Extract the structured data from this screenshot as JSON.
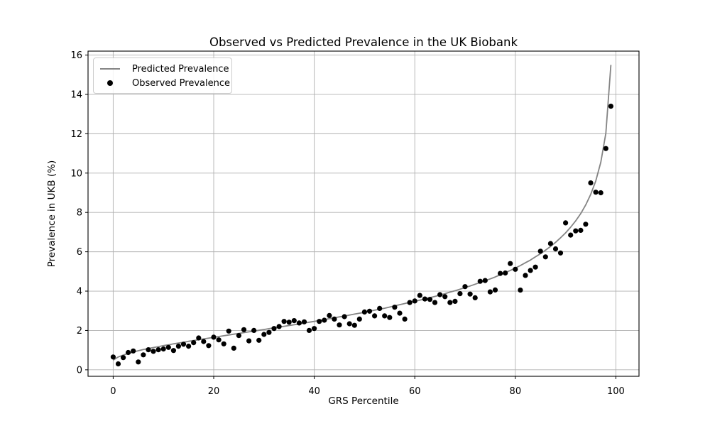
{
  "chart_data": {
    "type": "line+scatter",
    "title": "Observed vs Predicted Prevalence in the UK Biobank",
    "xlabel": "GRS Percentile",
    "ylabel": "Prevalence in UKB (%)",
    "xlim": [
      -5,
      104.6
    ],
    "ylim": [
      -0.33,
      16.2
    ],
    "xticks": [
      0,
      20,
      40,
      60,
      80,
      100
    ],
    "yticks": [
      0,
      2,
      4,
      6,
      8,
      10,
      12,
      14,
      16
    ],
    "grid": true,
    "grid_color": "#b0b0b0",
    "spine_color": "#000000",
    "background_color": "#ffffff",
    "legend_position": "upper left",
    "x": [
      0,
      1,
      2,
      3,
      4,
      5,
      6,
      7,
      8,
      9,
      10,
      11,
      12,
      13,
      14,
      15,
      16,
      17,
      18,
      19,
      20,
      21,
      22,
      23,
      24,
      25,
      26,
      27,
      28,
      29,
      30,
      31,
      32,
      33,
      34,
      35,
      36,
      37,
      38,
      39,
      40,
      41,
      42,
      43,
      44,
      45,
      46,
      47,
      48,
      49,
      50,
      51,
      52,
      53,
      54,
      55,
      56,
      57,
      58,
      59,
      60,
      61,
      62,
      63,
      64,
      65,
      66,
      67,
      68,
      69,
      70,
      71,
      72,
      73,
      74,
      75,
      76,
      77,
      78,
      79,
      80,
      81,
      82,
      83,
      84,
      85,
      86,
      87,
      88,
      89,
      90,
      91,
      92,
      93,
      94,
      95,
      96,
      97,
      98,
      99
    ],
    "series": [
      {
        "name": "Predicted Prevalence",
        "type": "line",
        "color": "#848484",
        "line_width": 1.8,
        "values": [
          0.49,
          0.65,
          0.75,
          0.83,
          0.9,
          0.97,
          1.03,
          1.08,
          1.13,
          1.18,
          1.23,
          1.27,
          1.32,
          1.36,
          1.4,
          1.45,
          1.49,
          1.53,
          1.57,
          1.61,
          1.65,
          1.69,
          1.73,
          1.77,
          1.81,
          1.85,
          1.89,
          1.93,
          1.97,
          2.01,
          2.05,
          2.09,
          2.13,
          2.17,
          2.21,
          2.25,
          2.29,
          2.33,
          2.38,
          2.42,
          2.46,
          2.51,
          2.55,
          2.6,
          2.64,
          2.69,
          2.73,
          2.78,
          2.83,
          2.88,
          2.92,
          2.98,
          3.03,
          3.08,
          3.13,
          3.19,
          3.25,
          3.31,
          3.37,
          3.43,
          3.48,
          3.54,
          3.6,
          3.67,
          3.73,
          3.8,
          3.87,
          3.95,
          4.02,
          4.1,
          4.18,
          4.26,
          4.35,
          4.44,
          4.53,
          4.62,
          4.72,
          4.83,
          4.94,
          5.05,
          5.17,
          5.3,
          5.44,
          5.58,
          5.74,
          5.9,
          6.08,
          6.27,
          6.48,
          6.71,
          6.96,
          7.25,
          7.57,
          7.94,
          8.38,
          8.92,
          9.6,
          10.55,
          12.02,
          15.5
        ]
      },
      {
        "name": "Observed Prevalence",
        "type": "scatter",
        "color": "#000000",
        "marker_radius": 3.6,
        "values": [
          0.65,
          0.3,
          0.62,
          0.88,
          0.96,
          0.4,
          0.76,
          1.02,
          0.94,
          1.02,
          1.06,
          1.14,
          0.98,
          1.2,
          1.3,
          1.2,
          1.38,
          1.62,
          1.44,
          1.23,
          1.66,
          1.52,
          1.32,
          1.97,
          1.1,
          1.74,
          2.04,
          1.47,
          2.0,
          1.5,
          1.8,
          1.9,
          2.1,
          2.2,
          2.46,
          2.42,
          2.5,
          2.38,
          2.44,
          2.0,
          2.1,
          2.46,
          2.52,
          2.76,
          2.58,
          2.28,
          2.7,
          2.34,
          2.26,
          2.58,
          2.94,
          2.98,
          2.74,
          3.12,
          2.74,
          2.66,
          3.18,
          2.88,
          2.58,
          3.42,
          3.5,
          3.78,
          3.6,
          3.58,
          3.42,
          3.82,
          3.72,
          3.42,
          3.48,
          3.87,
          4.23,
          3.85,
          3.66,
          4.5,
          4.54,
          3.96,
          4.06,
          4.9,
          4.92,
          5.4,
          5.11,
          4.05,
          4.8,
          5.05,
          5.22,
          6.03,
          5.74,
          6.42,
          6.15,
          5.94,
          7.47,
          6.85,
          7.06,
          7.09,
          7.4,
          9.5,
          9.03,
          9.0,
          11.25,
          13.4
        ]
      }
    ]
  }
}
